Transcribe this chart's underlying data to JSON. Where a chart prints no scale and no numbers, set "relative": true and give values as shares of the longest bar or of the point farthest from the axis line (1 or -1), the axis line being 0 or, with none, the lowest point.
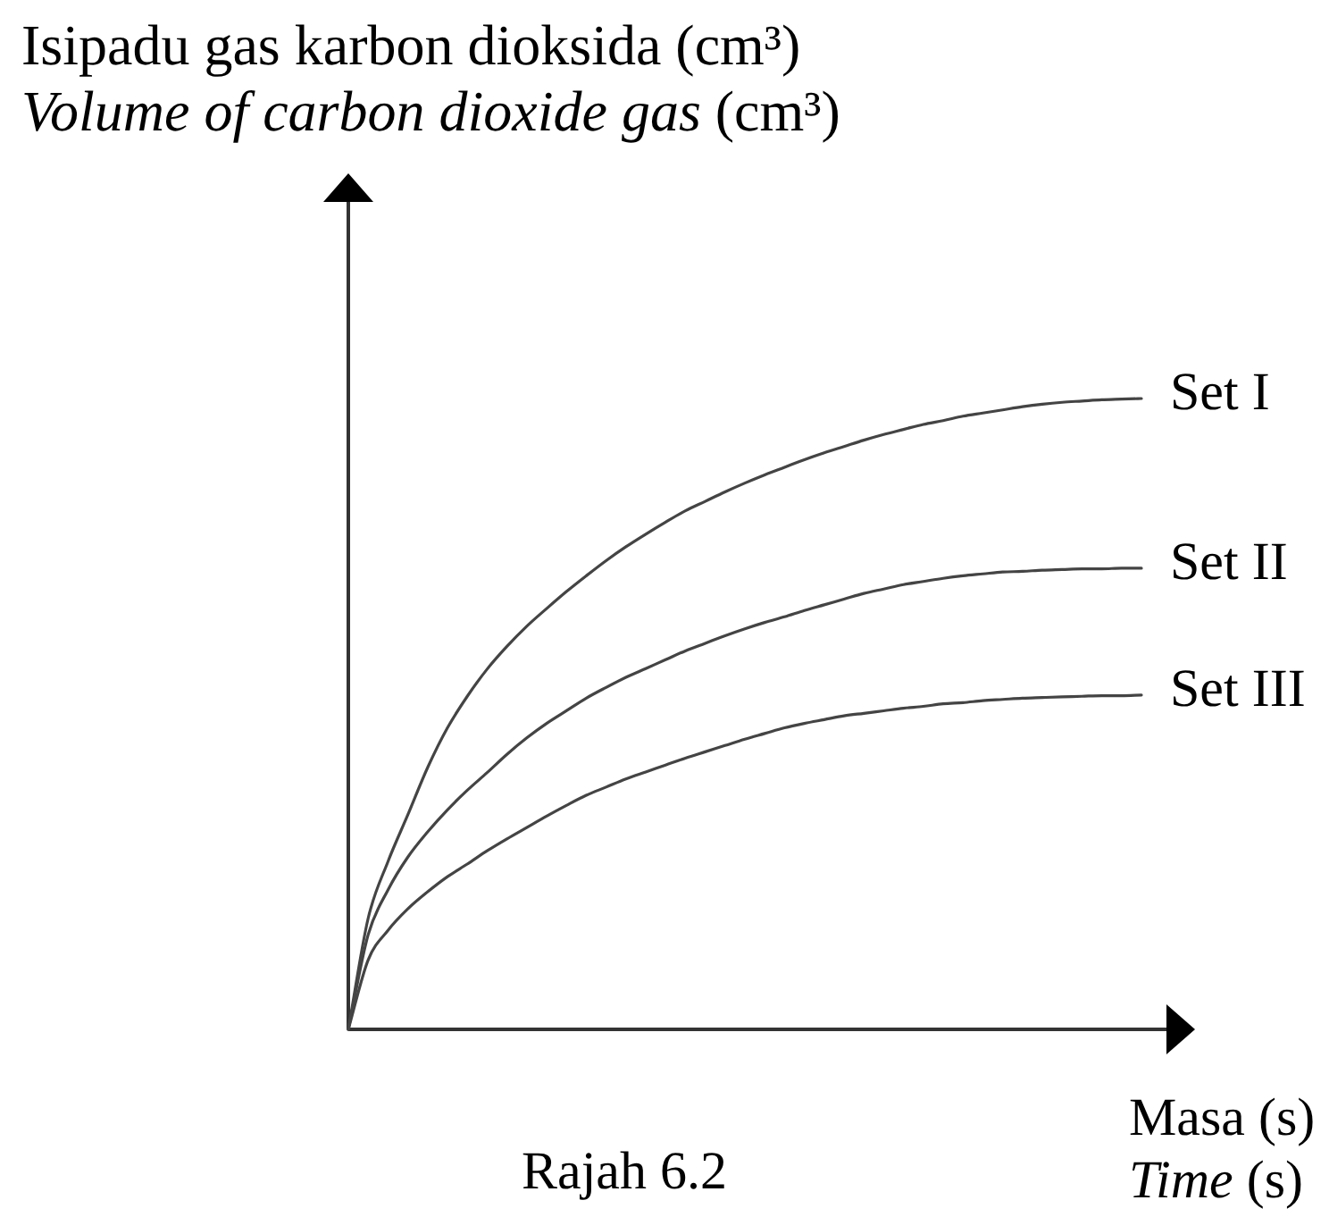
{
  "chart_data": {
    "type": "line",
    "ylabel": "Isipadu gas karbon dioksida (cm³)\nVolume of carbon dioxide gas (cm³)",
    "xlabel": "Masa (s)\nTime (s)",
    "annotations": [
      "Rajah 6.2"
    ],
    "relative": true,
    "marker": "none",
    "line_style": "solid",
    "categories": [
      null,
      null,
      null,
      null,
      null,
      null,
      null,
      null,
      null,
      null,
      null,
      null,
      null,
      null,
      null,
      null,
      null,
      null,
      null,
      null,
      null,
      null,
      null,
      null,
      null,
      null,
      null,
      null,
      null,
      null,
      null,
      null,
      null,
      null,
      null,
      null,
      null,
      null,
      null,
      null,
      null
    ],
    "series": [
      {
        "name": "Set I",
        "color": "#444444",
        "values": [
          0,
          0.176,
          0.266,
          0.34,
          0.415,
          0.478,
          0.528,
          0.571,
          0.607,
          0.639,
          0.667,
          0.694,
          0.719,
          0.743,
          0.765,
          0.785,
          0.804,
          0.822,
          0.837,
          0.852,
          0.866,
          0.879,
          0.891,
          0.903,
          0.914,
          0.924,
          0.934,
          0.943,
          0.951,
          0.959,
          0.965,
          0.972,
          0.977,
          0.982,
          0.987,
          0.991,
          0.994,
          0.996,
          0.998,
          0.999,
          1
        ]
      },
      {
        "name": "Set II",
        "color": "#444444",
        "values": [
          0,
          0.15,
          0.221,
          0.273,
          0.313,
          0.348,
          0.379,
          0.407,
          0.436,
          0.462,
          0.485,
          0.505,
          0.525,
          0.542,
          0.558,
          0.572,
          0.586,
          0.6,
          0.612,
          0.624,
          0.635,
          0.645,
          0.654,
          0.664,
          0.673,
          0.682,
          0.691,
          0.698,
          0.705,
          0.71,
          0.715,
          0.719,
          0.722,
          0.725,
          0.726,
          0.728,
          0.729,
          0.73,
          0.73,
          0.731,
          0.731
        ]
      },
      {
        "name": "Set III",
        "color": "#444444",
        "values": [
          0,
          0.11,
          0.157,
          0.191,
          0.218,
          0.242,
          0.262,
          0.283,
          0.302,
          0.32,
          0.338,
          0.355,
          0.371,
          0.384,
          0.397,
          0.408,
          0.419,
          0.43,
          0.44,
          0.45,
          0.46,
          0.469,
          0.478,
          0.485,
          0.491,
          0.497,
          0.501,
          0.505,
          0.509,
          0.512,
          0.516,
          0.518,
          0.521,
          0.523,
          0.525,
          0.526,
          0.527,
          0.528,
          0.529,
          0.529,
          0.53
        ]
      }
    ]
  }
}
